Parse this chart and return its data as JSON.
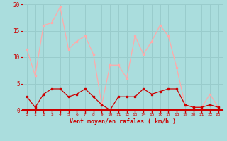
{
  "x": [
    0,
    1,
    2,
    3,
    4,
    5,
    6,
    7,
    8,
    9,
    10,
    11,
    12,
    13,
    14,
    15,
    16,
    17,
    18,
    19,
    20,
    21,
    22,
    23
  ],
  "wind_avg": [
    2.5,
    0.5,
    3,
    4,
    4,
    2.5,
    3,
    4,
    2.5,
    1,
    0,
    2.5,
    2.5,
    2.5,
    4,
    3,
    3.5,
    4,
    4,
    1,
    0.5,
    0.5,
    1,
    0.5
  ],
  "wind_gust": [
    11.5,
    6.5,
    16,
    16.5,
    19.5,
    11.5,
    13,
    14,
    10.5,
    1,
    8.5,
    8.5,
    6,
    14,
    10.5,
    13,
    16,
    14,
    8,
    1,
    0.5,
    0.5,
    3,
    0.5
  ],
  "avg_color": "#cc0000",
  "gust_color": "#ffaaaa",
  "bg_color": "#aadddd",
  "grid_color": "#99cccc",
  "xlabel": "Vent moyen/en rafales ( km/h )",
  "xlabel_color": "#cc0000",
  "tick_color": "#cc0000",
  "ylim": [
    0,
    20
  ],
  "yticks": [
    0,
    5,
    10,
    15,
    20
  ],
  "xlim": [
    -0.5,
    23.5
  ]
}
